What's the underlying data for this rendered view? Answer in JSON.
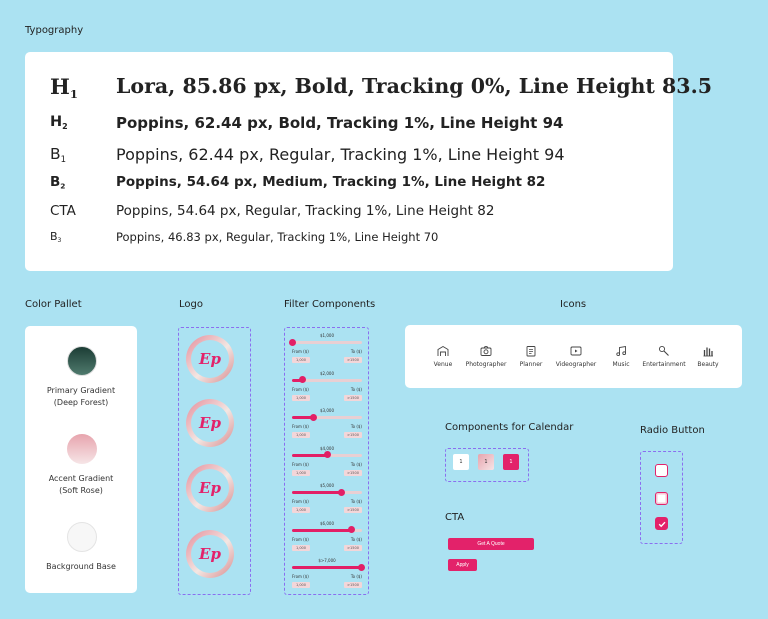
{
  "typography": {
    "title": "Typography",
    "rows": [
      {
        "tag": "H",
        "sub": "1",
        "spec": "Lora, 85.86 px, Bold, Tracking 0%, Line Height 83.5"
      },
      {
        "tag": "H",
        "sub": "2",
        "spec": "Poppins, 62.44 px, Bold, Tracking 1%, Line Height 94"
      },
      {
        "tag": "B",
        "sub": "1",
        "spec": "Poppins, 62.44 px, Regular, Tracking 1%, Line Height 94"
      },
      {
        "tag": "B",
        "sub": "2",
        "spec": "Poppins, 54.64 px, Medium, Tracking 1%, Line Height 82"
      },
      {
        "tag": "CTA",
        "sub": "",
        "spec": "Poppins, 54.64 px, Regular, Tracking 1%, Line Height 82"
      },
      {
        "tag": "B",
        "sub": "3",
        "spec": "Poppins, 46.83 px, Regular, Tracking 1%, Line Height 70"
      }
    ]
  },
  "palette": {
    "title": "Color Pallet",
    "swatches": [
      {
        "line1": "Primary Gradient",
        "line2": "(Deep Forest)",
        "from": "#1c3d35",
        "to": "#4f7a6d"
      },
      {
        "line1": "Accent Gradient",
        "line2": "(Soft Rose)",
        "from": "#e7a4ad",
        "to": "#f6e5e7"
      },
      {
        "line1": "Background Base",
        "line2": "",
        "from": "#f7f7f7",
        "to": "#f7f7f7"
      }
    ]
  },
  "logo": {
    "title": "Logo",
    "mark": "Ep"
  },
  "filters": {
    "title": "Filter Components",
    "from_label": "From ($)",
    "to_label": "To ($)",
    "from_value": "1,000",
    "to_value": ">1500",
    "sliders": [
      {
        "value": "$1,000",
        "fraction": 0.0
      },
      {
        "value": "$2,000",
        "fraction": 0.15
      },
      {
        "value": "$3,000",
        "fraction": 0.3
      },
      {
        "value": "$4,000",
        "fraction": 0.5
      },
      {
        "value": "$5,000",
        "fraction": 0.7
      },
      {
        "value": "$6,000",
        "fraction": 0.85
      },
      {
        "value": "$>7,000",
        "fraction": 0.99
      }
    ]
  },
  "icons": {
    "title": "Icons",
    "items": [
      {
        "label": "Venue",
        "icon": "venue-icon"
      },
      {
        "label": "Photographer",
        "icon": "camera-icon"
      },
      {
        "label": "Planner",
        "icon": "planner-icon"
      },
      {
        "label": "Videographer",
        "icon": "video-icon"
      },
      {
        "label": "Music",
        "icon": "music-icon"
      },
      {
        "label": "Entertainment",
        "icon": "microphone-icon"
      },
      {
        "label": "Beauty",
        "icon": "beauty-icon"
      }
    ]
  },
  "calendar": {
    "title": "Components for Calendar",
    "days": [
      "1",
      "1",
      "1"
    ]
  },
  "cta": {
    "title": "CTA",
    "primary": "Get A Quote",
    "secondary": "Apply"
  },
  "radio": {
    "title": "Radio Button"
  },
  "colors": {
    "accent": "#e3226a",
    "background": "#abe2f2"
  }
}
